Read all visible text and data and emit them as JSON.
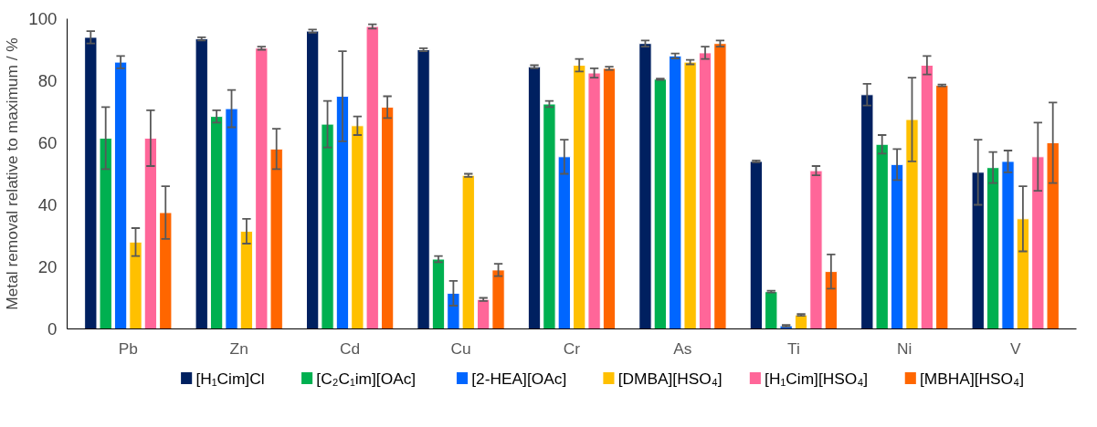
{
  "chart_data": {
    "type": "bar",
    "ylabel": "Metal removal relative to maximum / %",
    "categories": [
      "Pb",
      "Zn",
      "Cd",
      "Cu",
      "Cr",
      "As",
      "Ti",
      "Ni",
      "V"
    ],
    "series": [
      {
        "name": "[H₁Cim]Cl",
        "color": "#002060",
        "values": [
          94,
          93.5,
          96,
          90,
          84.5,
          92,
          54,
          75.5,
          50.5
        ],
        "errors": [
          2,
          0.5,
          0.5,
          0.5,
          0.5,
          1,
          0.3,
          3.5,
          10.5
        ]
      },
      {
        "name": "[C₂C₁im][OAc]",
        "color": "#00b050",
        "values": [
          61.5,
          68.5,
          66,
          22.5,
          72.5,
          80.5,
          12,
          59.5,
          52
        ],
        "errors": [
          10,
          2,
          7.5,
          1,
          1,
          0.2,
          0.3,
          3,
          5
        ]
      },
      {
        "name": "[2-HEA][OAc]",
        "color": "#0066ff",
        "values": [
          86,
          71,
          75,
          11.5,
          55.5,
          88,
          1,
          53,
          54
        ],
        "errors": [
          2,
          6,
          14.5,
          4,
          5.5,
          0.8,
          0.3,
          5,
          3.5
        ]
      },
      {
        "name": "[DMBA][HSO₄]",
        "color": "#ffc000",
        "values": [
          28,
          31.5,
          65.5,
          49.5,
          85,
          86,
          4.5,
          67.5,
          35.5
        ],
        "errors": [
          4.5,
          4,
          3,
          0.5,
          2,
          0.7,
          0.3,
          13.5,
          10.5
        ]
      },
      {
        "name": "[H₁Cim][HSO₄]",
        "color": "#ff6699",
        "values": [
          61.5,
          90.5,
          97.5,
          9.5,
          82.5,
          89,
          51,
          85,
          55.5
        ],
        "errors": [
          9,
          0.5,
          0.7,
          0.5,
          1.5,
          2,
          1.5,
          3,
          11
        ]
      },
      {
        "name": "[MBHA][HSO₄]",
        "color": "#ff6600",
        "values": [
          37.5,
          58,
          71.5,
          19,
          84,
          92,
          18.5,
          78.5,
          60
        ],
        "errors": [
          8.5,
          6.5,
          3.5,
          2,
          0.5,
          1,
          5.5,
          0.3,
          13
        ]
      }
    ],
    "ylim": [
      0,
      100
    ],
    "yticks": [
      0,
      20,
      40,
      60,
      80,
      100
    ],
    "grid": false,
    "legend": "bottom"
  }
}
